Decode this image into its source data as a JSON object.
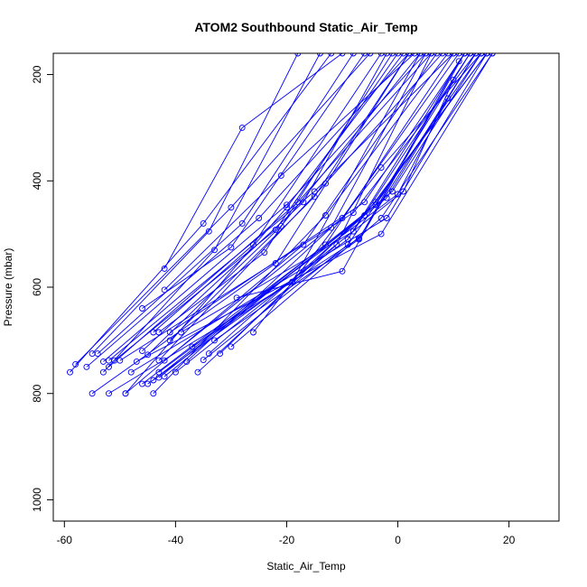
{
  "chart_data": {
    "type": "line",
    "title": "ATOM2 Southbound Static_Air_Temp",
    "xlabel": "Static_Air_Temp",
    "ylabel": "Pressure (mbar)",
    "xlim": [
      -62,
      29
    ],
    "ylim": [
      1040,
      160
    ],
    "y_reversed": true,
    "x_ticks": [
      -60,
      -40,
      -20,
      0,
      20
    ],
    "y_ticks": [
      200,
      400,
      600,
      800,
      1000
    ],
    "series_color": "#0000ff",
    "grid": false,
    "series": [
      {
        "x": [
          -59,
          -35,
          -12
        ],
        "y": [
          760,
          480,
          160
        ]
      },
      {
        "x": [
          -58,
          -30,
          -5
        ],
        "y": [
          745,
          450,
          160
        ]
      },
      {
        "x": [
          -56,
          -25,
          2
        ],
        "y": [
          750,
          470,
          160
        ]
      },
      {
        "x": [
          -55,
          -34,
          -18
        ],
        "y": [
          725,
          495,
          160
        ]
      },
      {
        "x": [
          -54,
          -28,
          -8
        ],
        "y": [
          725,
          480,
          160
        ]
      },
      {
        "x": [
          -53,
          -20,
          5
        ],
        "y": [
          740,
          445,
          160
        ]
      },
      {
        "x": [
          -52,
          -15,
          10
        ],
        "y": [
          738,
          420,
          160
        ]
      },
      {
        "x": [
          -51,
          -22,
          0
        ],
        "y": [
          738,
          492,
          160
        ]
      },
      {
        "x": [
          -50,
          -8,
          14
        ],
        "y": [
          738,
          460,
          160
        ]
      },
      {
        "x": [
          -53,
          -33,
          -14
        ],
        "y": [
          760,
          530,
          160
        ]
      },
      {
        "x": [
          -52,
          -18,
          6
        ],
        "y": [
          750,
          440,
          160
        ]
      },
      {
        "x": [
          -46,
          -30,
          -6
        ],
        "y": [
          640,
          525,
          160
        ]
      },
      {
        "x": [
          -44,
          -26,
          -3
        ],
        "y": [
          685,
          520,
          160
        ]
      },
      {
        "x": [
          -43,
          -24,
          -1
        ],
        "y": [
          685,
          535,
          160
        ]
      },
      {
        "x": [
          -42,
          -21,
          3
        ],
        "y": [
          605,
          390,
          160
        ]
      },
      {
        "x": [
          -42,
          -28,
          -10
        ],
        "y": [
          565,
          300,
          160
        ]
      },
      {
        "x": [
          -45,
          -21,
          4
        ],
        "y": [
          727,
          485,
          160
        ]
      },
      {
        "x": [
          -43,
          -13,
          8
        ],
        "y": [
          738,
          405,
          160
        ]
      },
      {
        "x": [
          -42,
          -10,
          11
        ],
        "y": [
          738,
          470,
          160
        ]
      },
      {
        "x": [
          -41,
          -6,
          12
        ],
        "y": [
          685,
          440,
          160
        ]
      },
      {
        "x": [
          -39,
          -8,
          13
        ],
        "y": [
          685,
          495,
          160
        ]
      },
      {
        "x": [
          -37,
          -7,
          14
        ],
        "y": [
          712,
          508,
          160
        ]
      },
      {
        "x": [
          -35,
          -9,
          15
        ],
        "y": [
          737,
          520,
          160
        ]
      },
      {
        "x": [
          -34,
          -6,
          16
        ],
        "y": [
          725,
          465,
          160
        ]
      },
      {
        "x": [
          -32,
          -4,
          16
        ],
        "y": [
          725,
          440,
          160
        ]
      },
      {
        "x": [
          -30,
          -3,
          17
        ],
        "y": [
          712,
          470,
          160
        ]
      },
      {
        "x": [
          -29,
          -10,
          12
        ],
        "y": [
          620,
          570,
          160
        ]
      },
      {
        "x": [
          -26,
          -3,
          15
        ],
        "y": [
          685,
          375,
          160
        ]
      },
      {
        "x": [
          -55,
          -22,
          2
        ],
        "y": [
          800,
          555,
          160
        ]
      },
      {
        "x": [
          -52,
          -19,
          4
        ],
        "y": [
          800,
          590,
          160
        ]
      },
      {
        "x": [
          -49,
          -17,
          7
        ],
        "y": [
          800,
          520,
          160
        ]
      },
      {
        "x": [
          -49,
          -20,
          1
        ],
        "y": [
          800,
          450,
          160
        ]
      },
      {
        "x": [
          -44,
          -13,
          9
        ],
        "y": [
          800,
          465,
          160
        ]
      },
      {
        "x": [
          -46,
          -13,
          10
        ],
        "y": [
          782,
          520,
          160
        ]
      },
      {
        "x": [
          -45,
          -9,
          12
        ],
        "y": [
          782,
          510,
          160
        ]
      },
      {
        "x": [
          -44,
          -4,
          13
        ],
        "y": [
          775,
          445,
          160
        ]
      },
      {
        "x": [
          -43,
          -2,
          14
        ],
        "y": [
          770,
          432,
          160
        ]
      },
      {
        "x": [
          -42,
          -1,
          15
        ],
        "y": [
          768,
          420,
          160
        ]
      },
      {
        "x": [
          -46,
          -17,
          -2
        ],
        "y": [
          720,
          440,
          160
        ]
      },
      {
        "x": [
          -41,
          -15,
          2
        ],
        "y": [
          700,
          430,
          160
        ]
      },
      {
        "x": [
          -38,
          -12,
          5
        ],
        "y": [
          740,
          488,
          160
        ]
      },
      {
        "x": [
          -36,
          -11,
          6
        ],
        "y": [
          760,
          520,
          160
        ]
      },
      {
        "x": [
          -48,
          -2,
          16
        ],
        "y": [
          760,
          470,
          160
        ]
      },
      {
        "x": [
          -47,
          -3,
          17
        ],
        "y": [
          740,
          500,
          160
        ]
      },
      {
        "x": [
          -43,
          0,
          9
        ],
        "y": [
          760,
          425,
          245
        ]
      },
      {
        "x": [
          -40,
          1,
          10
        ],
        "y": [
          760,
          420,
          210
        ]
      },
      {
        "x": [
          -33,
          -7,
          11
        ],
        "y": [
          700,
          510,
          175
        ]
      }
    ]
  }
}
